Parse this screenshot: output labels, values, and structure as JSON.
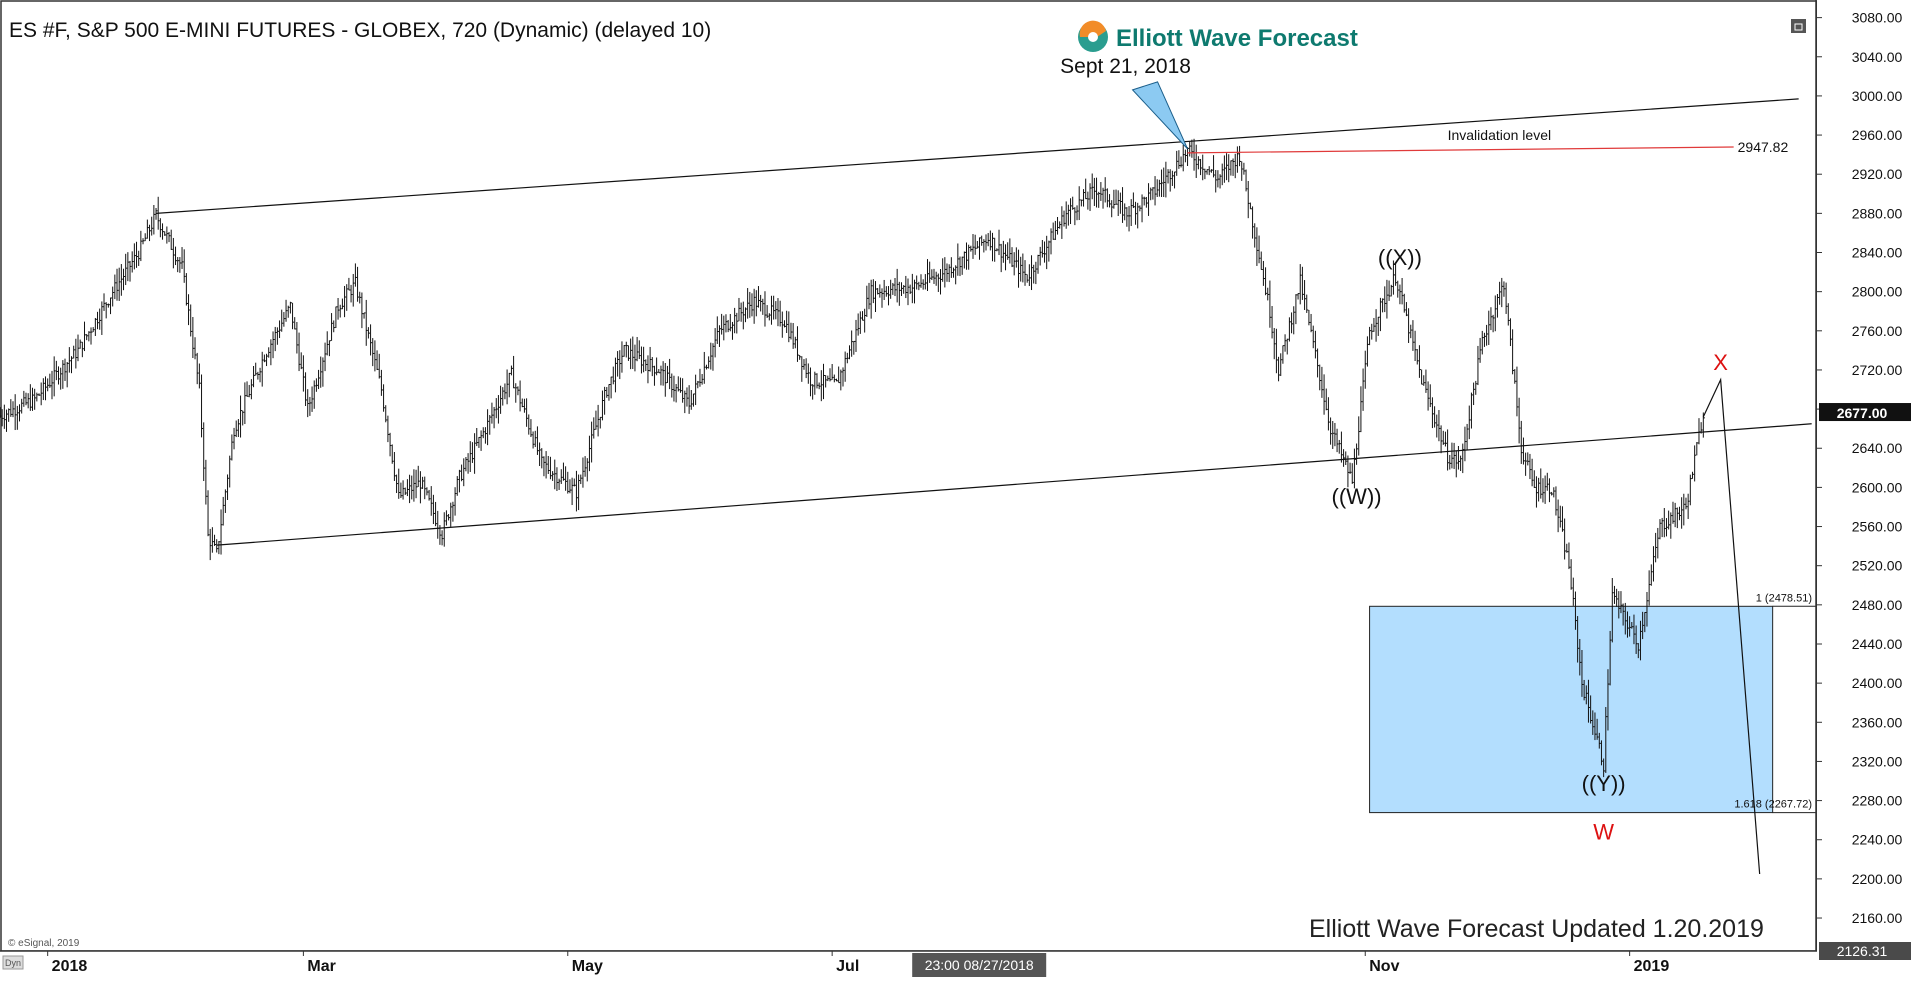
{
  "chart_data": {
    "type": "bar",
    "title": "ES #F, S&P 500 E-MINI FUTURES - GLOBEX, 720 (Dynamic) (delayed 10)",
    "brand": "Elliott Wave Forecast",
    "footer": "Elliott Wave Forecast Updated 1.20.2019",
    "copyright": "© eSignal, 2019",
    "dyn_tag": "Dyn",
    "ylim": [
      2126.31,
      3098
    ],
    "y_ticks": [
      3080,
      3040,
      3000,
      2960,
      2920,
      2880,
      2840,
      2800,
      2760,
      2720,
      2680,
      2640,
      2600,
      2560,
      2520,
      2480,
      2440,
      2400,
      2360,
      2320,
      2280,
      2240,
      2200,
      2160
    ],
    "y_tick_labels": [
      "3080.00",
      "3040.00",
      "3000.00",
      "2960.00",
      "2920.00",
      "2880.00",
      "2840.00",
      "2800.00",
      "2760.00",
      "2720.00",
      "2680.00",
      "2640.00",
      "2600.00",
      "2560.00",
      "2520.00",
      "2480.00",
      "2440.00",
      "2400.00",
      "2360.00",
      "2320.00",
      "2280.00",
      "2240.00",
      "2200.00",
      "2160.00"
    ],
    "last_price_label": "2677.00",
    "last_price": 2677.0,
    "low_label": "2126.31",
    "low_value": 2126.31,
    "x_axis": {
      "range": [
        "2017-12-21",
        "2019-02-13"
      ],
      "ticks": [
        {
          "date": "2018-01-01",
          "label": "2018"
        },
        {
          "date": "2018-03-01",
          "label": "Mar"
        },
        {
          "date": "2018-05-01",
          "label": "May"
        },
        {
          "date": "2018-07-01",
          "label": "Jul"
        },
        {
          "date": "2018-11-01",
          "label": "Nov"
        },
        {
          "date": "2019-01-01",
          "label": "2019"
        }
      ],
      "cursor_label": "23:00 08/27/2018",
      "cursor_date": "2018-08-27"
    },
    "price_path": [
      [
        "2017-12-21",
        2673
      ],
      [
        "2017-12-29",
        2690
      ],
      [
        "2018-01-08",
        2740
      ],
      [
        "2018-01-16",
        2800
      ],
      [
        "2018-01-22",
        2840
      ],
      [
        "2018-01-26",
        2878
      ],
      [
        "2018-02-01",
        2825
      ],
      [
        "2018-02-05",
        2700
      ],
      [
        "2018-02-07",
        2550
      ],
      [
        "2018-02-09",
        2532
      ],
      [
        "2018-02-13",
        2660
      ],
      [
        "2018-02-20",
        2735
      ],
      [
        "2018-02-26",
        2785
      ],
      [
        "2018-03-02",
        2680
      ],
      [
        "2018-03-09",
        2785
      ],
      [
        "2018-03-13",
        2808
      ],
      [
        "2018-03-19",
        2700
      ],
      [
        "2018-03-23",
        2590
      ],
      [
        "2018-03-28",
        2605
      ],
      [
        "2018-04-02",
        2553
      ],
      [
        "2018-04-06",
        2610
      ],
      [
        "2018-04-12",
        2660
      ],
      [
        "2018-04-18",
        2715
      ],
      [
        "2018-04-25",
        2625
      ],
      [
        "2018-05-03",
        2595
      ],
      [
        "2018-05-10",
        2700
      ],
      [
        "2018-05-14",
        2740
      ],
      [
        "2018-05-22",
        2720
      ],
      [
        "2018-05-29",
        2685
      ],
      [
        "2018-06-05",
        2760
      ],
      [
        "2018-06-13",
        2790
      ],
      [
        "2018-06-20",
        2770
      ],
      [
        "2018-06-26",
        2710
      ],
      [
        "2018-07-02",
        2705
      ],
      [
        "2018-07-10",
        2800
      ],
      [
        "2018-07-20",
        2805
      ],
      [
        "2018-07-27",
        2820
      ],
      [
        "2018-08-06",
        2855
      ],
      [
        "2018-08-15",
        2815
      ],
      [
        "2018-08-24",
        2880
      ],
      [
        "2018-08-31",
        2905
      ],
      [
        "2018-09-07",
        2880
      ],
      [
        "2018-09-13",
        2900
      ],
      [
        "2018-09-21",
        2944
      ],
      [
        "2018-09-28",
        2915
      ],
      [
        "2018-10-03",
        2940
      ],
      [
        "2018-10-10",
        2780
      ],
      [
        "2018-10-12",
        2720
      ],
      [
        "2018-10-17",
        2810
      ],
      [
        "2018-10-24",
        2660
      ],
      [
        "2018-10-29",
        2606
      ],
      [
        "2018-11-02",
        2760
      ],
      [
        "2018-11-08",
        2816
      ],
      [
        "2018-11-14",
        2710
      ],
      [
        "2018-11-20",
        2632
      ],
      [
        "2018-11-23",
        2625
      ],
      [
        "2018-11-28",
        2750
      ],
      [
        "2018-12-03",
        2809
      ],
      [
        "2018-12-07",
        2640
      ],
      [
        "2018-12-10",
        2600
      ],
      [
        "2018-12-14",
        2600
      ],
      [
        "2018-12-18",
        2520
      ],
      [
        "2018-12-21",
        2400
      ],
      [
        "2018-12-26",
        2317
      ],
      [
        "2018-12-28",
        2490
      ],
      [
        "2019-01-03",
        2440
      ],
      [
        "2019-01-08",
        2560
      ],
      [
        "2019-01-14",
        2580
      ],
      [
        "2019-01-18",
        2677
      ]
    ],
    "trendlines": [
      {
        "from": [
          "2018-01-26",
          2880
        ],
        "to": [
          "2019-02-09",
          2997
        ]
      },
      {
        "from": [
          "2018-02-09",
          2541
        ],
        "to": [
          "2019-02-12",
          2665
        ]
      }
    ],
    "invalidation": {
      "label": "Invalidation level",
      "value": 2947.82,
      "value_label": "2947.82",
      "from": "2018-09-21",
      "to": "2019-01-25",
      "color": "#e03a3a"
    },
    "projection": {
      "points": [
        [
          "2019-01-18",
          2672
        ],
        [
          "2019-01-22",
          2710
        ],
        [
          "2019-01-31",
          2205
        ]
      ]
    },
    "fib_zone": {
      "from": "2018-11-02",
      "to": "2019-02-03",
      "high": 2478.51,
      "low": 2267.72,
      "color": "#b3defe",
      "high_label": "1 (2478.51)",
      "low_label": "1.618 (2267.72)"
    },
    "peak_marker": {
      "label": "Sept 21, 2018",
      "date": "2018-09-21",
      "value": 2950,
      "color": "#8ccaf2"
    },
    "wave_labels": [
      {
        "text": "((X))",
        "date": "2018-11-09",
        "value": 2827,
        "color": "#111111",
        "size": 22
      },
      {
        "text": "((W))",
        "date": "2018-10-30",
        "value": 2583,
        "color": "#111111",
        "size": 22
      },
      {
        "text": "((Y))",
        "date": "2018-12-26",
        "value": 2290,
        "color": "#111111",
        "size": 22
      },
      {
        "text": "W",
        "date": "2018-12-26",
        "value": 2240,
        "color": "#dd1111",
        "size": 22
      },
      {
        "text": "X",
        "date": "2019-01-22",
        "value": 2720,
        "color": "#dd1111",
        "size": 22
      }
    ]
  }
}
